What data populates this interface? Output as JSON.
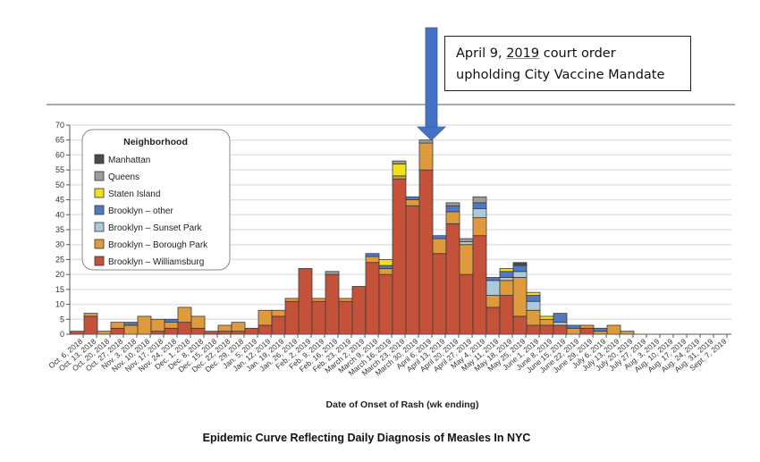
{
  "chart_data": {
    "type": "bar",
    "stacked": true,
    "xlabel": "Date of Onset of Rash (wk ending)",
    "ylabel": "",
    "ylim": [
      0,
      70
    ],
    "yticks": [
      0,
      5,
      10,
      15,
      20,
      25,
      30,
      35,
      40,
      45,
      50,
      55,
      60,
      65,
      70
    ],
    "grid": true,
    "legend_title": "Neighborhood",
    "legend_position": "top-left",
    "categories": [
      "Oct. 6, 2018",
      "Oct. 13, 2018",
      "Oct. 20, 2018",
      "Oct. 27, 2018",
      "Nov. 3, 2018",
      "Nov. 10, 2018",
      "Nov. 17, 2018",
      "Nov. 24, 2018",
      "Dec. 1, 2018",
      "Dec. 8, 2018",
      "Dec. 15, 2018",
      "Dec. 22, 2018",
      "Dec. 29, 2018",
      "Jan. 5, 2019",
      "Jan. 12, 2019",
      "Jan. 19, 2019",
      "Jan. 26, 2019",
      "Feb. 2, 2019",
      "Feb. 9, 2019",
      "Feb. 16, 2019",
      "Feb. 23, 2019",
      "March 2, 2019",
      "March 9, 2019",
      "March 16, 2019",
      "March 23, 2019",
      "March 30, 2019",
      "April 6, 2019",
      "April 13, 2019",
      "April 20, 2019",
      "April 27, 2019",
      "May 4, 2019",
      "May 11, 2019",
      "May 18, 2019",
      "May 25, 2019",
      "June 1, 2019",
      "June 8, 2019",
      "June 15, 2019",
      "June 22, 2019",
      "June 29, 2019",
      "July 6, 2019",
      "July 13, 2019",
      "July 20, 2019",
      "July 27, 2019",
      "Aug. 3, 2019",
      "Aug. 10, 2019",
      "Aug. 17, 2019",
      "Aug. 24, 2019",
      "Aug. 31, 2019",
      "Sept. 7, 2019"
    ],
    "series": [
      {
        "name": "Brooklyn – Williamsburg",
        "color": "#c4513a",
        "values": [
          1,
          6,
          0,
          2,
          0,
          0,
          1,
          2,
          4,
          2,
          1,
          1,
          1,
          2,
          3,
          6,
          11,
          22,
          11,
          20,
          11,
          16,
          24,
          20,
          52,
          43,
          55,
          27,
          37,
          20,
          33,
          9,
          13,
          6,
          3,
          3,
          3,
          0,
          2,
          0,
          0,
          0,
          0,
          0,
          0,
          0,
          0,
          0,
          0
        ]
      },
      {
        "name": "Brooklyn – Borough Park",
        "color": "#e09a3e",
        "values": [
          0,
          1,
          1,
          2,
          3,
          6,
          4,
          2,
          5,
          4,
          0,
          2,
          3,
          0,
          5,
          2,
          1,
          0,
          1,
          0,
          1,
          0,
          2,
          2,
          1,
          2,
          9,
          5,
          4,
          10,
          6,
          4,
          5,
          13,
          5,
          2,
          0,
          2,
          1,
          1,
          3,
          1,
          0,
          0,
          0,
          0,
          0,
          0,
          0
        ]
      },
      {
        "name": "Brooklyn – Sunset Park",
        "color": "#a9cad9",
        "values": [
          0,
          0,
          0,
          0,
          0,
          0,
          0,
          0,
          0,
          0,
          0,
          0,
          0,
          0,
          0,
          0,
          0,
          0,
          0,
          0,
          0,
          0,
          0,
          0,
          0,
          0,
          0,
          0,
          0,
          1,
          3,
          5,
          1,
          2,
          3,
          0,
          1,
          0,
          0,
          0,
          0,
          0,
          0,
          0,
          0,
          0,
          0,
          0,
          0
        ]
      },
      {
        "name": "Brooklyn – other",
        "color": "#4f7ac2",
        "values": [
          0,
          0,
          0,
          0,
          1,
          0,
          0,
          1,
          0,
          0,
          0,
          0,
          0,
          0,
          0,
          0,
          0,
          0,
          0,
          0,
          0,
          0,
          1,
          1,
          0,
          1,
          0,
          1,
          2,
          0,
          2,
          1,
          2,
          2,
          2,
          0,
          3,
          1,
          0,
          1,
          0,
          0,
          0,
          0,
          0,
          0,
          0,
          0,
          0
        ]
      },
      {
        "name": "Staten Island",
        "color": "#f2e01a",
        "values": [
          0,
          0,
          0,
          0,
          0,
          0,
          0,
          0,
          0,
          0,
          0,
          0,
          0,
          0,
          0,
          0,
          0,
          0,
          0,
          0,
          0,
          0,
          0,
          2,
          4,
          0,
          0,
          0,
          0,
          0,
          0,
          0,
          1,
          0,
          1,
          1,
          0,
          0,
          0,
          0,
          0,
          0,
          0,
          0,
          0,
          0,
          0,
          0,
          0
        ]
      },
      {
        "name": "Queens",
        "color": "#9c9c9c",
        "values": [
          0,
          0,
          0,
          0,
          0,
          0,
          0,
          0,
          0,
          0,
          0,
          0,
          0,
          0,
          0,
          0,
          0,
          0,
          0,
          1,
          0,
          0,
          0,
          0,
          1,
          0,
          1,
          0,
          1,
          1,
          2,
          0,
          0,
          0,
          0,
          0,
          0,
          0,
          0,
          0,
          0,
          0,
          0,
          0,
          0,
          0,
          0,
          0,
          0
        ]
      },
      {
        "name": "Manhattan",
        "color": "#4a4a4a",
        "values": [
          0,
          0,
          0,
          0,
          0,
          0,
          0,
          0,
          0,
          0,
          0,
          0,
          0,
          0,
          0,
          0,
          0,
          0,
          0,
          0,
          0,
          0,
          0,
          0,
          0,
          0,
          0,
          0,
          0,
          0,
          0,
          0,
          0,
          1,
          0,
          0,
          0,
          0,
          0,
          0,
          0,
          0,
          0,
          0,
          0,
          0,
          0,
          0,
          0
        ]
      }
    ],
    "annotation": {
      "text_prefix": "April 9, ",
      "text_underlined": "2019",
      "text_suffix": " court order",
      "line2": "upholding City Vaccine Mandate",
      "points_to": "April 13, 2019",
      "arrow_color": "#4472c4"
    },
    "caption": "Epidemic Curve Reflecting Daily Diagnosis of Measles In NYC"
  }
}
